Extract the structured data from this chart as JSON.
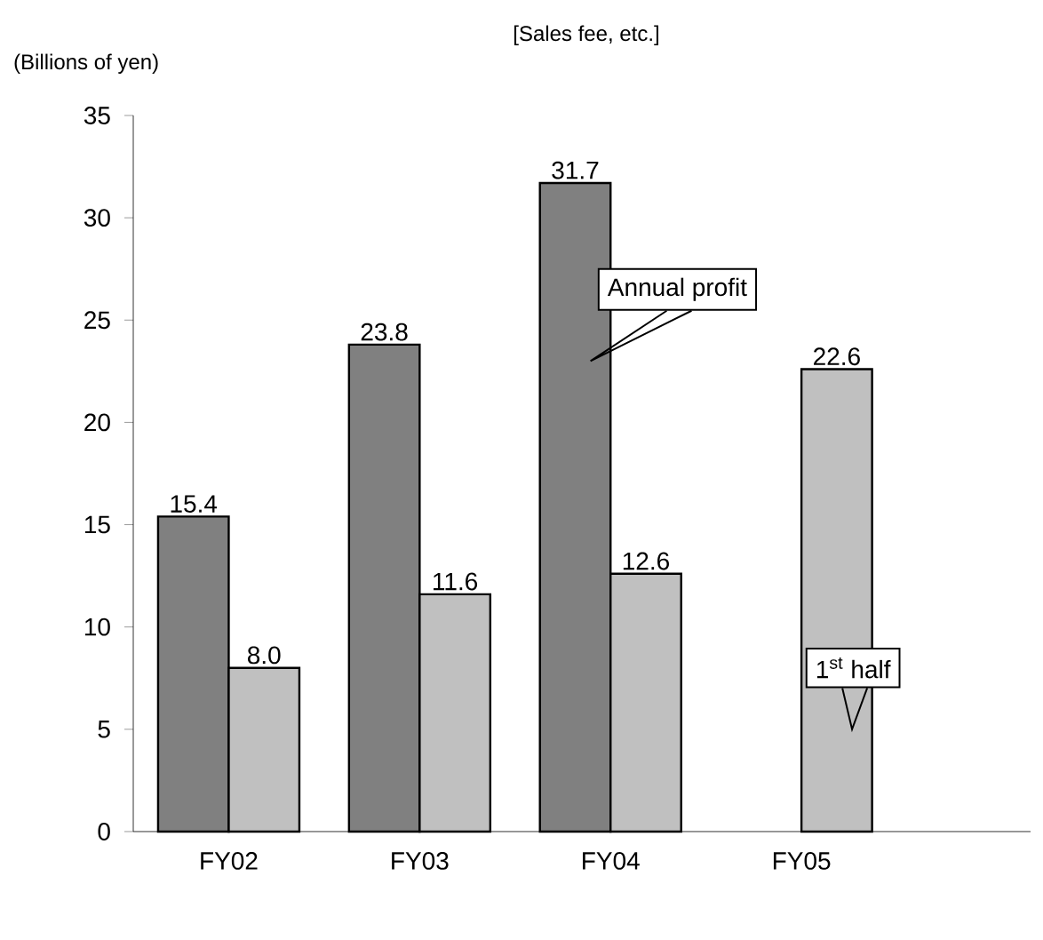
{
  "chart_data": {
    "type": "bar",
    "title": "[Sales fee, etc.]",
    "ylabel": "(Billions of yen)",
    "categories": [
      "FY02",
      "FY03",
      "FY04",
      "FY05"
    ],
    "series": [
      {
        "color": "#808080",
        "values": [
          15.4,
          23.8,
          31.7,
          null
        ],
        "value_labels": [
          "15.4",
          "23.8",
          "31.7",
          null
        ]
      },
      {
        "color": "#c0c0c0",
        "values": [
          8.0,
          11.6,
          12.6,
          22.6
        ],
        "value_labels": [
          "8.0",
          "11.6",
          "12.6",
          "22.6"
        ]
      }
    ],
    "ylim": [
      0,
      35
    ],
    "yticks": [
      0,
      5,
      10,
      15,
      20,
      25,
      30,
      35
    ],
    "grid": false,
    "annotations": [
      {
        "text": "Annual profit",
        "x": "FY04",
        "y": 23
      },
      {
        "text": "1$^{st}$ half",
        "x": "FY05",
        "y": 5
      }
    ]
  }
}
